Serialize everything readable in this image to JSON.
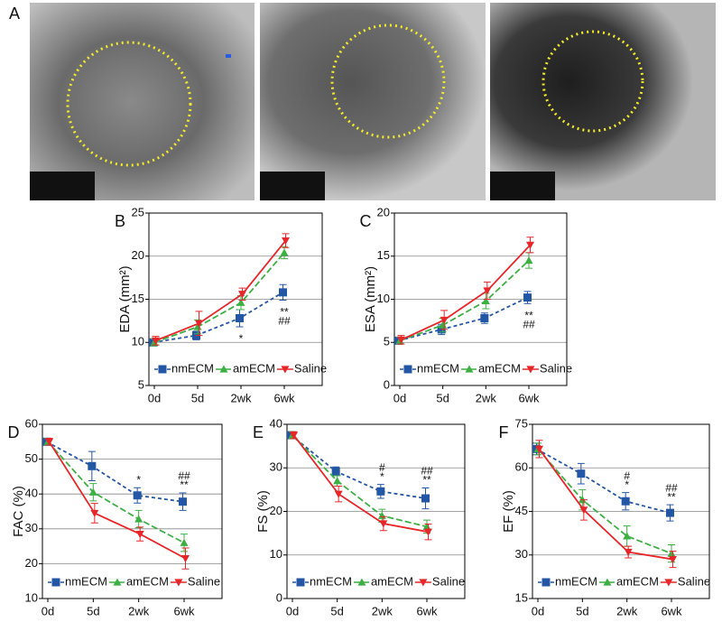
{
  "panel_a": {
    "label": "A"
  },
  "chart_data": [
    {
      "type": "line",
      "panel": "B",
      "title": "EDA (mm²)",
      "categories": [
        "0d",
        "5d",
        "2wk",
        "6wk"
      ],
      "ylim": [
        5,
        25
      ],
      "yticks": [
        5,
        10,
        15,
        20,
        25
      ],
      "grid": true,
      "annotation_side": "below",
      "annotations": [
        [],
        [],
        [
          "*"
        ],
        [
          "**",
          "##"
        ]
      ],
      "series": [
        {
          "name": "nmECM",
          "color": "#2456a6",
          "values": [
            10,
            10.8,
            12.8,
            15.8
          ],
          "errors": [
            0.4,
            0.5,
            1.0,
            0.9
          ]
        },
        {
          "name": "amECM",
          "color": "#3cb043",
          "values": [
            10,
            11.8,
            14.6,
            20.4
          ],
          "errors": [
            0.4,
            0.8,
            0.8,
            0.7
          ]
        },
        {
          "name": "Saline",
          "color": "#e8262a",
          "values": [
            10.2,
            12.2,
            15.6,
            21.8
          ],
          "errors": [
            0.5,
            1.4,
            0.7,
            0.8
          ]
        }
      ]
    },
    {
      "type": "line",
      "panel": "C",
      "title": "ESA (mm²)",
      "categories": [
        "0d",
        "5d",
        "2wk",
        "6wk"
      ],
      "ylim": [
        0,
        20
      ],
      "yticks": [
        0,
        5,
        10,
        15,
        20
      ],
      "grid": true,
      "annotation_side": "below",
      "annotations": [
        [],
        [],
        [],
        [
          "**",
          "##"
        ]
      ],
      "series": [
        {
          "name": "nmECM",
          "color": "#2456a6",
          "values": [
            5.2,
            6.5,
            7.8,
            10.2
          ],
          "errors": [
            0.4,
            0.6,
            0.6,
            0.7
          ]
        },
        {
          "name": "amECM",
          "color": "#3cb043",
          "values": [
            5.2,
            7.0,
            9.8,
            14.5
          ],
          "errors": [
            0.4,
            0.8,
            0.9,
            0.9
          ]
        },
        {
          "name": "Saline",
          "color": "#e8262a",
          "values": [
            5.3,
            7.6,
            11.0,
            16.3
          ],
          "errors": [
            0.5,
            1.1,
            1.0,
            0.9
          ]
        }
      ]
    },
    {
      "type": "line",
      "panel": "D",
      "title": "FAC (%)",
      "categories": [
        "0d",
        "5d",
        "2wk",
        "6wk"
      ],
      "ylim": [
        10,
        60
      ],
      "yticks": [
        10,
        20,
        30,
        40,
        50,
        60
      ],
      "grid": true,
      "annotation_side": "above",
      "annotations": [
        [],
        [],
        [
          "*"
        ],
        [
          "##",
          "**"
        ]
      ],
      "series": [
        {
          "name": "nmECM",
          "color": "#2456a6",
          "values": [
            55,
            48,
            39.6,
            37.8
          ],
          "errors": [
            1.0,
            4.2,
            2.2,
            2.5
          ]
        },
        {
          "name": "amECM",
          "color": "#3cb043",
          "values": [
            55,
            40.5,
            32.8,
            26
          ],
          "errors": [
            1.0,
            2.5,
            2.5,
            2.5
          ]
        },
        {
          "name": "Saline",
          "color": "#e8262a",
          "values": [
            55,
            34.5,
            28.5,
            21.5
          ],
          "errors": [
            1.0,
            2.8,
            2.0,
            3.0
          ]
        }
      ]
    },
    {
      "type": "line",
      "panel": "E",
      "title": "FS (%)",
      "categories": [
        "0d",
        "5d",
        "2wk",
        "6wk"
      ],
      "ylim": [
        0,
        40
      ],
      "yticks": [
        0,
        10,
        20,
        30,
        40
      ],
      "grid": true,
      "annotation_side": "above",
      "annotations": [
        [],
        [],
        [
          "#",
          "*"
        ],
        [
          "##",
          "**"
        ]
      ],
      "series": [
        {
          "name": "nmECM",
          "color": "#2456a6",
          "values": [
            37.5,
            29.2,
            24.6,
            23
          ],
          "errors": [
            0.8,
            1.0,
            1.6,
            2.4
          ]
        },
        {
          "name": "amECM",
          "color": "#3cb043",
          "values": [
            37.5,
            27,
            19,
            16.5
          ],
          "errors": [
            0.8,
            1.2,
            1.5,
            1.5
          ]
        },
        {
          "name": "Saline",
          "color": "#e8262a",
          "values": [
            37.5,
            24,
            17.2,
            15.3
          ],
          "errors": [
            0.8,
            1.8,
            1.6,
            1.8
          ]
        }
      ]
    },
    {
      "type": "line",
      "panel": "F",
      "title": "EF (%)",
      "categories": [
        "0d",
        "5d",
        "2wk",
        "6wk"
      ],
      "ylim": [
        15,
        75
      ],
      "yticks": [
        15,
        30,
        45,
        60,
        75
      ],
      "grid": true,
      "annotation_side": "above",
      "annotations": [
        [],
        [],
        [
          "#",
          "*"
        ],
        [
          "##",
          "**"
        ]
      ],
      "series": [
        {
          "name": "nmECM",
          "color": "#2456a6",
          "values": [
            66.5,
            58,
            48.5,
            44.5
          ],
          "errors": [
            2.0,
            3.5,
            3.0,
            2.8
          ]
        },
        {
          "name": "amECM",
          "color": "#3cb043",
          "values": [
            66.5,
            49,
            36.5,
            30.5
          ],
          "errors": [
            2.0,
            3.5,
            3.5,
            3.0
          ]
        },
        {
          "name": "Saline",
          "color": "#e8262a",
          "values": [
            66.5,
            45.5,
            31,
            28.5
          ],
          "errors": [
            3.0,
            3.5,
            2.0,
            2.8
          ]
        }
      ]
    }
  ]
}
